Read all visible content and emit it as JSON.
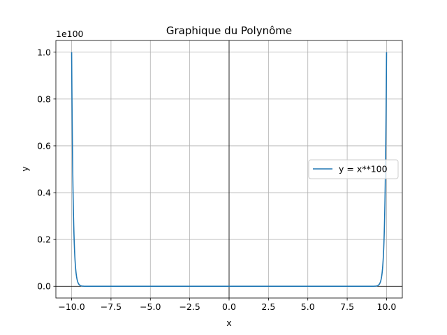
{
  "chart_data": {
    "type": "line",
    "title": "Graphique du Polynôme",
    "xlabel": "x",
    "ylabel": "y",
    "y_scale_label": "1e100",
    "xlim": [
      -11,
      11
    ],
    "ylim": [
      -0.05,
      1.05
    ],
    "x_ticks": [
      -10.0,
      -7.5,
      -5.0,
      -2.5,
      0.0,
      2.5,
      5.0,
      7.5,
      10.0
    ],
    "x_tick_labels": [
      "−10.0",
      "−7.5",
      "−5.0",
      "−2.5",
      "0.0",
      "2.5",
      "5.0",
      "7.5",
      "10.0"
    ],
    "y_ticks": [
      0.0,
      0.2,
      0.4,
      0.6,
      0.8,
      1.0
    ],
    "y_tick_labels": [
      "0.0",
      "0.2",
      "0.4",
      "0.6",
      "0.8",
      "1.0"
    ],
    "grid": true,
    "zero_lines": true,
    "legend_position": "center-right",
    "series": [
      {
        "name": "y = x**100",
        "color": "#1f77b4",
        "x_range": [
          -10,
          10
        ],
        "exponent": 100,
        "scale": 1e+100
      }
    ]
  }
}
